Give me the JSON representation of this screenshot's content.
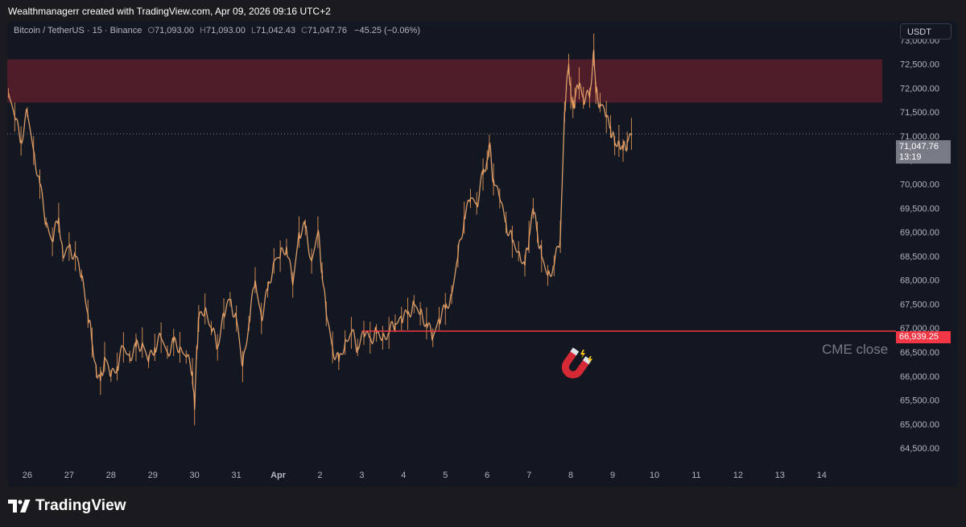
{
  "header": {
    "attribution": "Wealthmanagerr created with TradingView.com, Apr 09, 2026 09:16 UTC+2"
  },
  "legend": {
    "symbol": "Bitcoin / TetherUS · 15 · Binance",
    "open_label": "O",
    "open": "71,093.00",
    "high_label": "H",
    "high": "71,093.00",
    "low_label": "L",
    "low": "71,042.43",
    "close_label": "C",
    "close": "71,047.76",
    "change": "−45.25 (−0.06%)"
  },
  "currency_button": "USDT",
  "price_tags": {
    "current_price": "71,047.76",
    "countdown": "13:19",
    "cme_price": "66,939.25"
  },
  "annotations": {
    "cme_label": "CME close",
    "magnet_icon": "magnet-icon"
  },
  "footer": {
    "brand": "TradingView",
    "logo_icon": "tradingview-logo-icon"
  },
  "colors": {
    "background": "#131722",
    "candle_up": "#f7a35c",
    "candle_down": "#8a8f99",
    "zone_fill": "#5b1f2c",
    "cme_line": "#f23645",
    "axis_text": "#b2b5be"
  },
  "chart_data": {
    "type": "line",
    "title": "Bitcoin / TetherUS · 15 · Binance",
    "ylim": [
      64200,
      73400
    ],
    "y_ticks": [
      64500,
      65000,
      65500,
      66000,
      66500,
      67000,
      67500,
      68000,
      68500,
      69000,
      69500,
      70000,
      70500,
      71000,
      71500,
      72000,
      72500,
      73000
    ],
    "y_tick_labels": [
      "64,500.00",
      "65,000.00",
      "65,500.00",
      "66,000.00",
      "66,500.00",
      "67,000.00",
      "67,500.00",
      "68,000.00",
      "68,500.00",
      "69,000.00",
      "69,500.00",
      "70,000.00",
      "70,500.00",
      "71,000.00",
      "71,500.00",
      "72,000.00",
      "72,500.00",
      "73,000.00"
    ],
    "x_tick_labels": [
      "26",
      "27",
      "28",
      "29",
      "30",
      "31",
      "Apr",
      "2",
      "3",
      "4",
      "5",
      "6",
      "7",
      "8",
      "9",
      "10",
      "11",
      "12",
      "13",
      "14"
    ],
    "x_tick_days": [
      0,
      1,
      2,
      3,
      4,
      5,
      6,
      7,
      8,
      9,
      10,
      11,
      12,
      13,
      14,
      15,
      16,
      17,
      18,
      19
    ],
    "xlim_days": [
      -0.48,
      20.7
    ],
    "series": [
      {
        "x": [
          -0.45,
          -0.3,
          -0.15,
          0.0,
          0.15,
          0.3,
          0.45,
          0.6,
          0.75,
          0.85,
          1.0,
          1.15,
          1.3,
          1.45,
          1.55,
          1.65,
          1.75,
          1.85,
          2.0,
          2.15,
          2.3,
          2.45,
          2.6,
          2.75,
          2.9,
          3.05,
          3.2,
          3.35,
          3.5,
          3.65,
          3.8,
          3.95,
          4.0,
          4.05,
          4.1,
          4.25,
          4.4,
          4.55,
          4.7,
          4.85,
          5.0,
          5.15,
          5.3,
          5.45,
          5.6,
          5.75,
          5.9,
          6.05,
          6.2,
          6.35,
          6.5,
          6.65,
          6.8,
          6.95,
          7.05,
          7.15,
          7.3,
          7.45,
          7.6,
          7.75,
          7.9,
          8.05,
          8.2,
          8.35,
          8.5,
          8.65,
          8.8,
          8.95,
          9.1,
          9.25,
          9.4,
          9.55,
          9.7,
          9.85,
          10.0,
          10.15,
          10.3,
          10.45,
          10.6,
          10.75,
          10.9,
          11.0,
          11.05,
          11.15,
          11.3,
          11.45,
          11.6,
          11.75,
          11.9,
          12.0,
          12.1,
          12.2,
          12.3,
          12.45,
          12.6,
          12.75,
          12.85,
          12.95,
          13.0,
          13.05,
          13.1,
          13.2,
          13.3,
          13.45,
          13.55,
          13.6,
          13.7,
          13.85,
          13.95,
          14.05,
          14.15,
          14.25,
          14.35,
          14.45
        ],
        "values": [
          71900,
          71400,
          70900,
          71500,
          70700,
          70000,
          69200,
          68800,
          69300,
          68500,
          68700,
          68500,
          68100,
          67300,
          66700,
          66100,
          65900,
          66400,
          66000,
          66200,
          66600,
          66400,
          66600,
          66700,
          66300,
          66600,
          66800,
          66500,
          66700,
          66600,
          66400,
          66100,
          65300,
          66500,
          67200,
          67400,
          67000,
          66600,
          67300,
          67600,
          67200,
          66200,
          67100,
          68000,
          67200,
          67800,
          68400,
          68500,
          68700,
          67900,
          69000,
          69100,
          68400,
          69000,
          68200,
          67300,
          66600,
          66300,
          66700,
          66900,
          66600,
          66900,
          66800,
          66900,
          66800,
          66900,
          67100,
          67200,
          67300,
          67500,
          67300,
          67100,
          66800,
          67200,
          67400,
          67700,
          68500,
          69300,
          69700,
          69600,
          70200,
          70500,
          70800,
          70100,
          69700,
          69200,
          68800,
          68600,
          68300,
          68900,
          69500,
          69000,
          68500,
          68100,
          68300,
          68900,
          71500,
          72500,
          71900,
          71600,
          71800,
          72100,
          71800,
          71800,
          72800,
          71900,
          71700,
          71400,
          71200,
          70800,
          70900,
          70700,
          70900,
          71050
        ]
      }
    ],
    "zone": {
      "low": 71700,
      "high": 72600
    },
    "cme_close": 66939.25,
    "current_price": 71047.76
  }
}
